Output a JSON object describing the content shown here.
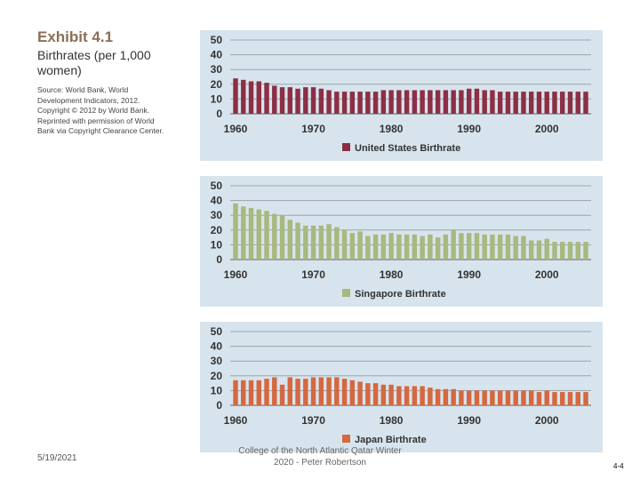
{
  "exhibit": {
    "title": "Exhibit 4.1",
    "subtitle_line1": "Birthrates (per 1,000",
    "subtitle_line2": "women)",
    "source_lines": [
      "Source: World Bank, World",
      "Development Indicators, 2012.",
      "Copyright © 2012 by World Bank.",
      "Reprinted with permission of World",
      "Bank via Copyright Clearance Center."
    ]
  },
  "chart_data": [
    {
      "type": "bar",
      "legend": "United States Birthrate",
      "color": "#8c2f45",
      "background": "#d8e4ed",
      "ylim": [
        0,
        50
      ],
      "yticks": [
        0,
        10,
        20,
        30,
        40,
        50
      ],
      "xticks": [
        1960,
        1970,
        1980,
        1990,
        2000
      ],
      "x": [
        1960,
        1961,
        1962,
        1963,
        1964,
        1965,
        1966,
        1967,
        1968,
        1969,
        1970,
        1971,
        1972,
        1973,
        1974,
        1975,
        1976,
        1977,
        1978,
        1979,
        1980,
        1981,
        1982,
        1983,
        1984,
        1985,
        1986,
        1987,
        1988,
        1989,
        1990,
        1991,
        1992,
        1993,
        1994,
        1995,
        1996,
        1997,
        1998,
        1999,
        2000,
        2001,
        2002,
        2003,
        2004,
        2005
      ],
      "values": [
        24,
        23,
        22,
        22,
        21,
        19,
        18,
        18,
        17,
        18,
        18,
        17,
        16,
        15,
        15,
        15,
        15,
        15,
        15,
        16,
        16,
        16,
        16,
        16,
        16,
        16,
        16,
        16,
        16,
        16,
        17,
        17,
        16,
        16,
        15,
        15,
        15,
        15,
        15,
        15,
        15,
        15,
        15,
        15,
        15,
        15
      ]
    },
    {
      "type": "bar",
      "legend": "Singapore Birthrate",
      "color": "#a9b87e",
      "background": "#d8e4ed",
      "ylim": [
        0,
        50
      ],
      "yticks": [
        0,
        10,
        20,
        30,
        40,
        50
      ],
      "xticks": [
        1960,
        1970,
        1980,
        1990,
        2000
      ],
      "x": [
        1960,
        1961,
        1962,
        1963,
        1964,
        1965,
        1966,
        1967,
        1968,
        1969,
        1970,
        1971,
        1972,
        1973,
        1974,
        1975,
        1976,
        1977,
        1978,
        1979,
        1980,
        1981,
        1982,
        1983,
        1984,
        1985,
        1986,
        1987,
        1988,
        1989,
        1990,
        1991,
        1992,
        1993,
        1994,
        1995,
        1996,
        1997,
        1998,
        1999,
        2000,
        2001,
        2002,
        2003,
        2004,
        2005
      ],
      "values": [
        38,
        36,
        35,
        34,
        33,
        31,
        30,
        27,
        25,
        23,
        23,
        23,
        24,
        22,
        20,
        18,
        19,
        16,
        17,
        17,
        18,
        17,
        17,
        17,
        16,
        17,
        15,
        17,
        20,
        18,
        18,
        18,
        17,
        17,
        17,
        17,
        16,
        16,
        13,
        13,
        14,
        12,
        12,
        12,
        12,
        12
      ]
    },
    {
      "type": "bar",
      "legend": "Japan Birthrate",
      "color": "#d4683f",
      "background": "#d8e4ed",
      "ylim": [
        0,
        50
      ],
      "yticks": [
        0,
        10,
        20,
        30,
        40,
        50
      ],
      "xticks": [
        1960,
        1970,
        1980,
        1990,
        2000
      ],
      "x": [
        1960,
        1961,
        1962,
        1963,
        1964,
        1965,
        1966,
        1967,
        1968,
        1969,
        1970,
        1971,
        1972,
        1973,
        1974,
        1975,
        1976,
        1977,
        1978,
        1979,
        1980,
        1981,
        1982,
        1983,
        1984,
        1985,
        1986,
        1987,
        1988,
        1989,
        1990,
        1991,
        1992,
        1993,
        1994,
        1995,
        1996,
        1997,
        1998,
        1999,
        2000,
        2001,
        2002,
        2003,
        2004,
        2005
      ],
      "values": [
        17,
        17,
        17,
        17,
        18,
        19,
        14,
        19,
        18,
        18,
        19,
        19,
        19,
        19,
        18,
        17,
        16,
        15,
        15,
        14,
        14,
        13,
        13,
        13,
        13,
        12,
        11,
        11,
        11,
        10,
        10,
        10,
        10,
        10,
        10,
        10,
        10,
        10,
        10,
        9,
        10,
        9,
        9,
        9,
        9,
        9
      ]
    }
  ],
  "footer": {
    "date": "5/19/2021",
    "credit_line1": "College of the North Atlantic Qatar Winter",
    "credit_line2": "2020 - Peter Robertson",
    "page": "4-4"
  }
}
